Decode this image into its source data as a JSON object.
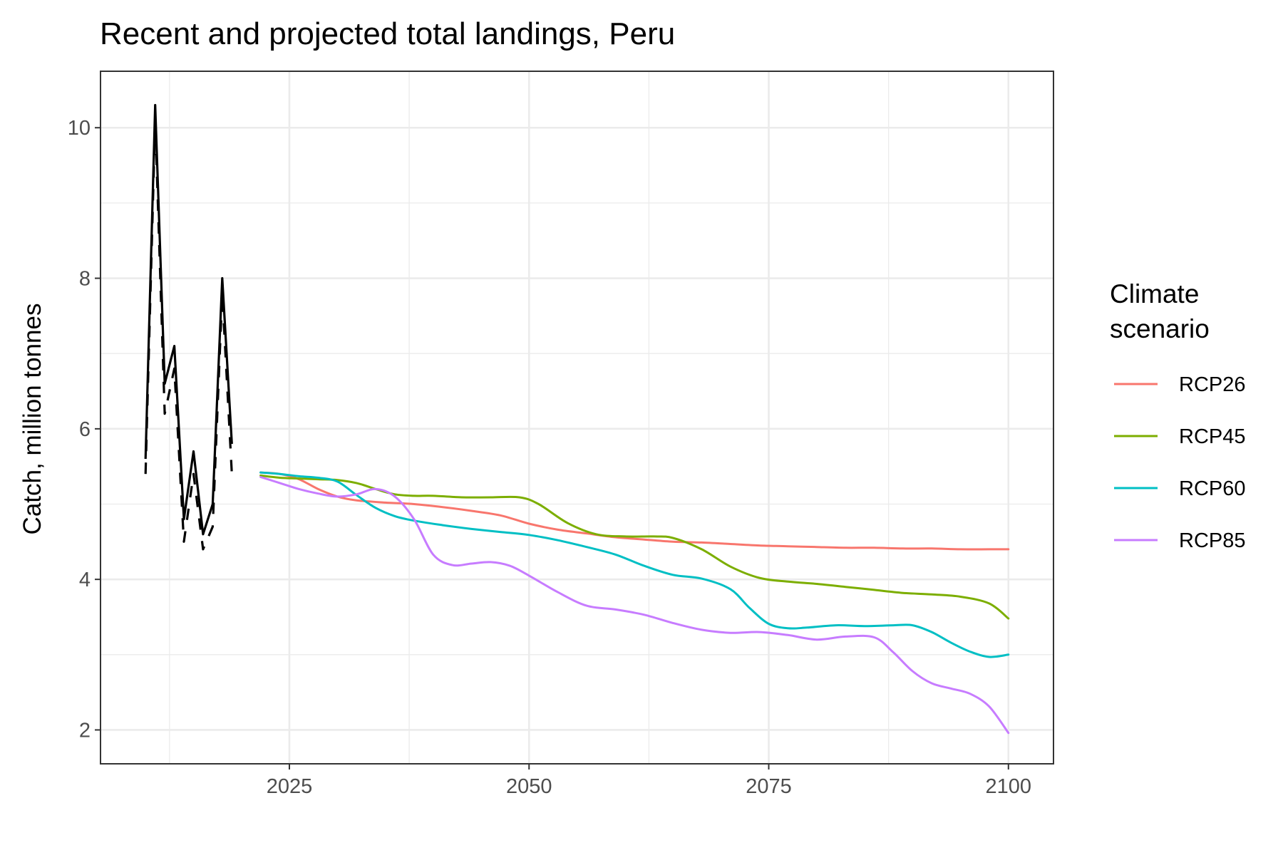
{
  "chart_data": {
    "type": "line",
    "title": "Recent and projected total landings, Peru",
    "xlabel": "",
    "ylabel": "Catch, million tonnes",
    "xlim": [
      2005.3,
      2104.7
    ],
    "ylim": [
      1.55,
      10.75
    ],
    "x_ticks": [
      2025,
      2050,
      2075,
      2100
    ],
    "x_tick_labels": [
      "2025",
      "2050",
      "2075",
      "2100"
    ],
    "x_minor": [
      2012.5,
      2037.5,
      2062.5,
      2087.5
    ],
    "y_ticks": [
      2,
      4,
      6,
      8,
      10
    ],
    "y_tick_labels": [
      "2",
      "4",
      "6",
      "8",
      "10"
    ],
    "y_minor": [
      3,
      5,
      7,
      9
    ],
    "grid": true,
    "legend": {
      "title_lines": [
        "Climate",
        "scenario"
      ],
      "placement": "right"
    },
    "historical": [
      {
        "line_style": "solid",
        "color": "#000000",
        "x": [
          2010,
          2011,
          2012,
          2013,
          2014,
          2015,
          2016,
          2017,
          2018,
          2019
        ],
        "y": [
          5.6,
          10.3,
          6.6,
          7.1,
          4.8,
          5.7,
          4.6,
          5.0,
          8.0,
          5.8
        ]
      },
      {
        "line_style": "dashed",
        "color": "#000000",
        "x": [
          2010,
          2011,
          2012,
          2013,
          2014,
          2015,
          2016,
          2017,
          2018,
          2019
        ],
        "y": [
          5.4,
          10.1,
          6.2,
          6.8,
          4.5,
          5.4,
          4.4,
          4.7,
          7.8,
          5.4
        ]
      }
    ],
    "series": [
      {
        "name": "RCP26",
        "color": "#F8766D",
        "x": [
          2022,
          2024,
          2026,
          2028,
          2030,
          2032,
          2035,
          2038,
          2041,
          2044,
          2047,
          2050,
          2053,
          2056,
          2059,
          2062,
          2065,
          2068,
          2071,
          2074,
          2077,
          2080,
          2083,
          2086,
          2089,
          2092,
          2095,
          2098,
          2100
        ],
        "y": [
          5.42,
          5.4,
          5.33,
          5.2,
          5.1,
          5.05,
          5.02,
          5.0,
          4.96,
          4.91,
          4.85,
          4.74,
          4.66,
          4.61,
          4.56,
          4.53,
          4.5,
          4.49,
          4.47,
          4.45,
          4.44,
          4.43,
          4.42,
          4.42,
          4.41,
          4.41,
          4.4,
          4.4,
          4.4
        ]
      },
      {
        "name": "RCP45",
        "color": "#7CAE00",
        "x": [
          2022,
          2024,
          2026,
          2028,
          2030,
          2032,
          2034,
          2036,
          2038,
          2040,
          2043,
          2046,
          2049,
          2051,
          2054,
          2057,
          2060,
          2063,
          2065,
          2068,
          2071,
          2074,
          2077,
          2080,
          2083,
          2086,
          2089,
          2092,
          2095,
          2098,
          2100
        ],
        "y": [
          5.38,
          5.35,
          5.34,
          5.33,
          5.32,
          5.28,
          5.2,
          5.13,
          5.11,
          5.11,
          5.09,
          5.09,
          5.09,
          5.0,
          4.75,
          4.6,
          4.57,
          4.57,
          4.55,
          4.4,
          4.17,
          4.02,
          3.97,
          3.94,
          3.9,
          3.86,
          3.82,
          3.8,
          3.77,
          3.68,
          3.48
        ]
      },
      {
        "name": "RCP60",
        "color": "#00BFC4",
        "x": [
          2022,
          2024,
          2026,
          2028,
          2030,
          2032,
          2034,
          2036,
          2038,
          2041,
          2044,
          2047,
          2050,
          2053,
          2056,
          2059,
          2062,
          2065,
          2068,
          2071,
          2073,
          2075,
          2077,
          2079,
          2082,
          2085,
          2088,
          2090,
          2092,
          2094,
          2096,
          2098,
          2100
        ],
        "y": [
          5.42,
          5.4,
          5.37,
          5.35,
          5.3,
          5.12,
          4.95,
          4.84,
          4.78,
          4.72,
          4.67,
          4.63,
          4.59,
          4.52,
          4.43,
          4.33,
          4.18,
          4.06,
          4.01,
          3.87,
          3.62,
          3.41,
          3.35,
          3.36,
          3.39,
          3.38,
          3.39,
          3.39,
          3.3,
          3.16,
          3.04,
          2.97,
          3.0
        ]
      },
      {
        "name": "RCP85",
        "color": "#C77CFF",
        "x": [
          2022,
          2024,
          2026,
          2028,
          2030,
          2032,
          2034,
          2036,
          2038,
          2040,
          2042,
          2044,
          2046,
          2048,
          2050,
          2053,
          2056,
          2059,
          2062,
          2065,
          2068,
          2071,
          2074,
          2077,
          2080,
          2083,
          2086,
          2088,
          2090,
          2092,
          2094,
          2096,
          2098,
          2100
        ],
        "y": [
          5.36,
          5.28,
          5.2,
          5.14,
          5.1,
          5.13,
          5.2,
          5.1,
          4.8,
          4.33,
          4.19,
          4.21,
          4.23,
          4.18,
          4.05,
          3.83,
          3.65,
          3.6,
          3.53,
          3.42,
          3.33,
          3.29,
          3.3,
          3.26,
          3.2,
          3.24,
          3.23,
          3.03,
          2.78,
          2.62,
          2.55,
          2.48,
          2.31,
          1.96
        ]
      }
    ]
  }
}
